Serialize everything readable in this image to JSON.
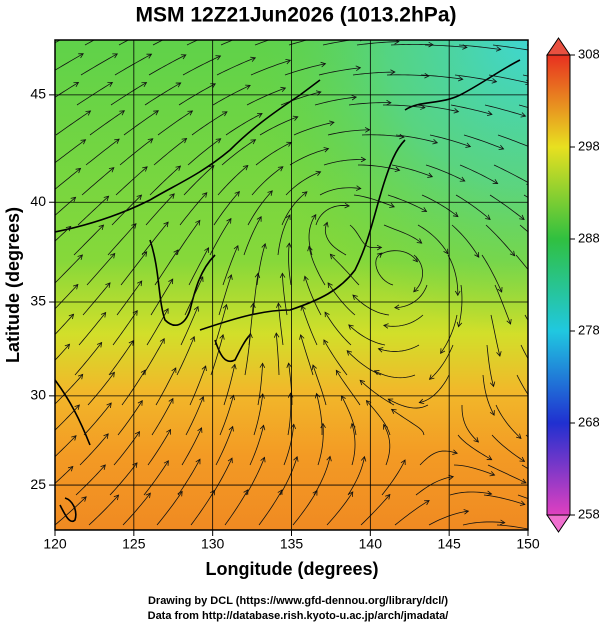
{
  "title": "MSM 12Z21Jun2026 (1013.2hPa)",
  "map": {
    "xlim": [
      120,
      150
    ],
    "ylim": [
      22.4,
      47.4
    ],
    "projection": "mercator",
    "x_axis": {
      "label": "Longitude (degrees)",
      "ticks": [
        120,
        125,
        130,
        135,
        140,
        145,
        150
      ]
    },
    "y_axis": {
      "label": "Latitude  (degrees)",
      "ticks": [
        25,
        30,
        35,
        40,
        45
      ]
    }
  },
  "colorbar": {
    "lim": [
      258,
      308
    ],
    "ticks": [
      258,
      268,
      278,
      288,
      298,
      308
    ]
  },
  "credits": [
    "Drawing by DCL (https://www.gfd-dennou.org/library/dcl/)",
    "Data from http://database.rish.kyoto-u.ac.jp/arch/jmadata/"
  ]
}
